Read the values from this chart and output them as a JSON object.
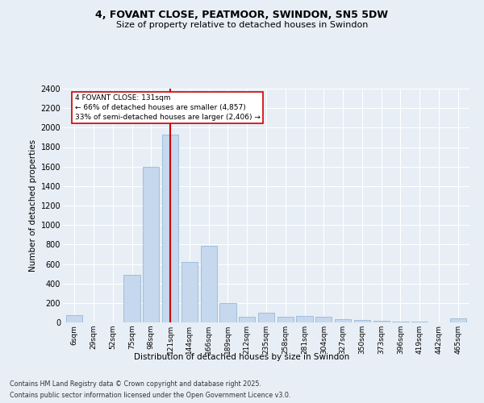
{
  "title1": "4, FOVANT CLOSE, PEATMOOR, SWINDON, SN5 5DW",
  "title2": "Size of property relative to detached houses in Swindon",
  "xlabel": "Distribution of detached houses by size in Swindon",
  "ylabel": "Number of detached properties",
  "categories": [
    "6sqm",
    "29sqm",
    "52sqm",
    "75sqm",
    "98sqm",
    "121sqm",
    "144sqm",
    "166sqm",
    "189sqm",
    "212sqm",
    "235sqm",
    "258sqm",
    "281sqm",
    "304sqm",
    "327sqm",
    "350sqm",
    "373sqm",
    "396sqm",
    "419sqm",
    "442sqm",
    "465sqm"
  ],
  "values": [
    75,
    0,
    0,
    490,
    1600,
    1930,
    620,
    790,
    195,
    60,
    100,
    55,
    70,
    55,
    35,
    25,
    15,
    10,
    5,
    0,
    40
  ],
  "bar_color": "#c5d8ee",
  "bar_edge_color": "#8ab0d0",
  "vline_x_index": 5,
  "vline_color": "#cc0000",
  "annotation_text": "4 FOVANT CLOSE: 131sqm\n← 66% of detached houses are smaller (4,857)\n33% of semi-detached houses are larger (2,406) →",
  "ylim_max": 2400,
  "yticks": [
    0,
    200,
    400,
    600,
    800,
    1000,
    1200,
    1400,
    1600,
    1800,
    2000,
    2200,
    2400
  ],
  "footer1": "Contains HM Land Registry data © Crown copyright and database right 2025.",
  "footer2": "Contains public sector information licensed under the Open Government Licence v3.0.",
  "bg_color": "#e8eef5"
}
